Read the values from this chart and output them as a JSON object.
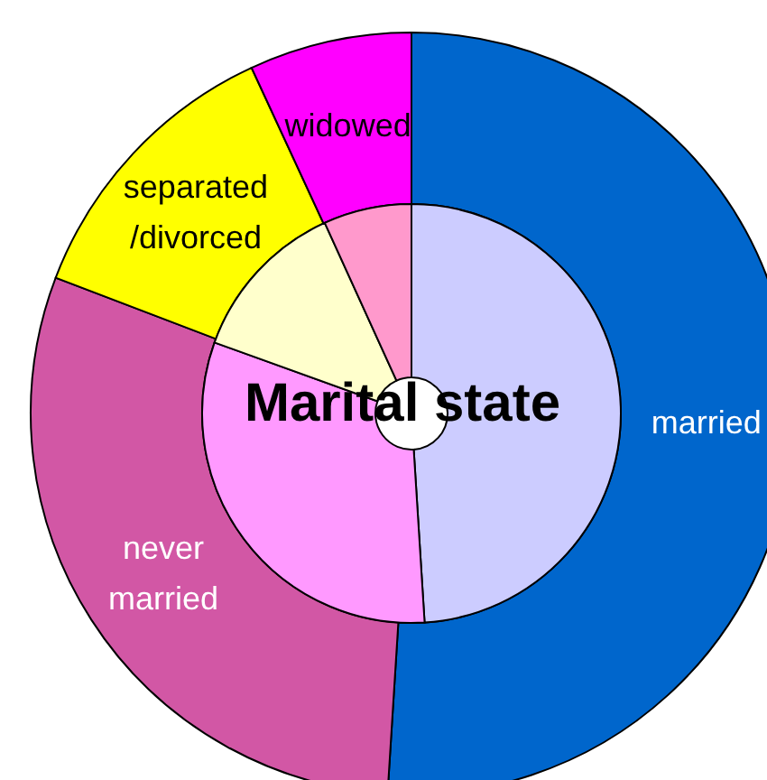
{
  "chart_data": {
    "type": "donut",
    "title": "Marital state",
    "categories": [
      "married",
      "never married",
      "separated/divorced",
      "widowed"
    ],
    "series": [
      {
        "values": [
          51,
          29.8,
          12.3,
          6.9
        ],
        "colors": [
          "#0066cc",
          "#d257a5",
          "#ffff00",
          "#ff00ff"
        ]
      },
      {
        "values": [
          49,
          31.5,
          12.7,
          6.8
        ],
        "colors": [
          "#ccccff",
          "#ff99ff",
          "#ffffcc",
          "#ff99cc"
        ]
      }
    ]
  }
}
